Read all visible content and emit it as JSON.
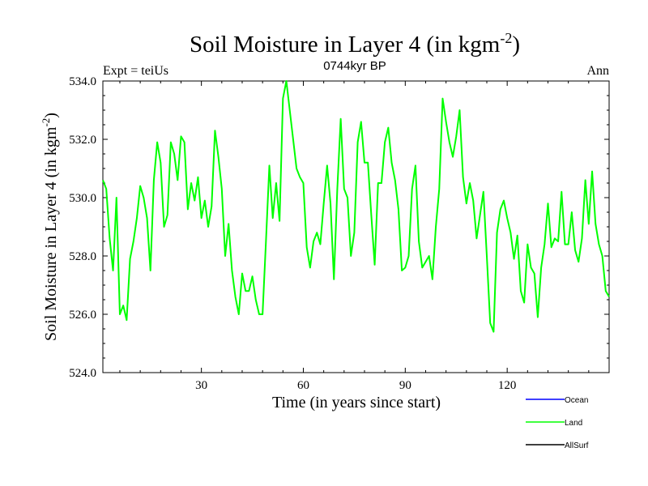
{
  "chart_data": {
    "type": "line",
    "title_main": "Soil Moisture in Layer 4 (in kgm",
    "title_sup": "-2",
    "title_close": ")",
    "subtitle": "0744kyr BP",
    "left_label": "Expt = teiUs",
    "right_label": "Ann",
    "xlabel": "Time (in years since start)",
    "ylabel_main": "Soil Moisture in Layer 4 (in kgm",
    "ylabel_sup": "-2",
    "ylabel_close": ")",
    "xlim": [
      1,
      150
    ],
    "ylim": [
      524.0,
      534.0
    ],
    "x_ticks": [
      30,
      60,
      90,
      120
    ],
    "x_tick_labels": [
      "30",
      "60",
      "90",
      "120"
    ],
    "y_ticks": [
      524,
      526,
      528,
      530,
      532,
      534
    ],
    "y_tick_labels": [
      "524.0",
      "526.0",
      "528.0",
      "530.0",
      "532.0",
      "534.0"
    ],
    "legend": [
      {
        "name": "Ocean",
        "color": "#0000ff"
      },
      {
        "name": "Land",
        "color": "#00ff00"
      },
      {
        "name": "AllSurf",
        "color": "#000000"
      }
    ],
    "series": [
      {
        "name": "Land",
        "color": "#00ff00",
        "x_start": 1,
        "x_step": 1,
        "values": [
          530.6,
          530.3,
          528.6,
          527.5,
          530.0,
          526.0,
          526.3,
          525.8,
          527.9,
          528.5,
          529.3,
          530.4,
          530.0,
          529.3,
          527.5,
          530.6,
          531.9,
          531.2,
          529.0,
          529.4,
          531.9,
          531.5,
          530.6,
          532.1,
          531.9,
          529.6,
          530.5,
          529.9,
          530.7,
          529.3,
          529.9,
          529.0,
          529.7,
          532.3,
          531.4,
          530.3,
          528.0,
          529.1,
          527.5,
          526.6,
          526.0,
          527.4,
          526.8,
          526.8,
          527.3,
          526.5,
          526.0,
          526.0,
          528.5,
          531.1,
          529.3,
          530.5,
          529.2,
          533.4,
          534.0,
          533.0,
          532.0,
          531.0,
          530.7,
          530.5,
          528.3,
          527.6,
          528.5,
          528.8,
          528.4,
          529.8,
          531.1,
          529.8,
          527.2,
          530.3,
          532.7,
          530.3,
          530.0,
          528.0,
          528.8,
          531.9,
          532.6,
          531.2,
          531.2,
          529.4,
          527.7,
          530.5,
          530.5,
          531.9,
          532.4,
          531.2,
          530.6,
          529.6,
          527.5,
          527.6,
          528.0,
          530.3,
          531.1,
          528.5,
          527.6,
          527.8,
          528.0,
          527.2,
          529.0,
          530.3,
          533.4,
          532.6,
          531.9,
          531.4,
          532.1,
          533.0,
          530.7,
          529.8,
          530.5,
          529.9,
          528.6,
          529.4,
          530.2,
          528.0,
          525.7,
          525.4,
          528.8,
          529.6,
          529.9,
          529.3,
          528.8,
          527.9,
          528.7,
          526.8,
          526.4,
          528.4,
          527.6,
          527.4,
          525.9,
          527.6,
          528.4,
          529.8,
          528.3,
          528.6,
          528.5,
          530.2,
          528.4,
          528.4,
          529.5,
          528.2,
          527.8,
          528.6,
          530.6,
          529.1,
          530.9,
          529.1,
          528.4,
          528.0,
          526.8,
          526.6
        ]
      }
    ]
  }
}
